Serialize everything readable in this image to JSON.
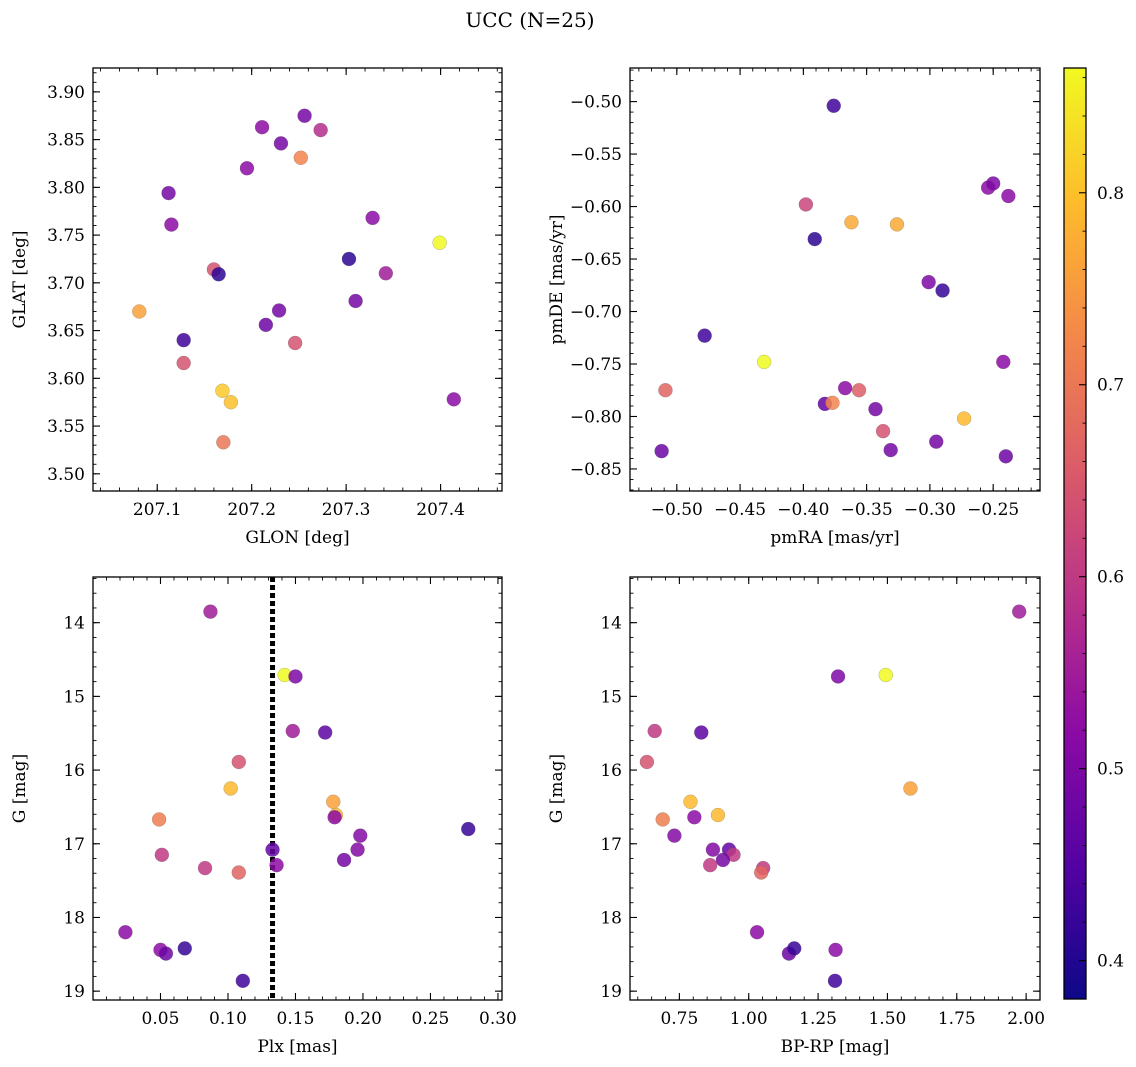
{
  "figure": {
    "title": "UCC (N=25)"
  },
  "colorbar": {
    "min": 0.38,
    "max": 0.865,
    "ticks": [
      0.4,
      0.5,
      0.6,
      0.7,
      0.8
    ],
    "tick_labels": [
      "0.4",
      "0.5",
      "0.6",
      "0.7",
      "0.8"
    ],
    "colormap": "plasma"
  },
  "chart_data": [
    {
      "type": "scatter",
      "id": "glon_glat",
      "xlabel": "GLON [deg]",
      "ylabel": "GLAT [deg]",
      "xlim": [
        207.032,
        207.465
      ],
      "ylim": [
        3.482,
        3.925
      ],
      "invert_y": false,
      "xticks": [
        207.1,
        207.2,
        207.3,
        207.4
      ],
      "xtick_labels": [
        "207.1",
        "207.2",
        "207.3",
        "207.4"
      ],
      "yticks": [
        3.5,
        3.55,
        3.6,
        3.65,
        3.7,
        3.75,
        3.8,
        3.85,
        3.9
      ],
      "ytick_labels": [
        "3.50",
        "3.55",
        "3.60",
        "3.65",
        "3.70",
        "3.75",
        "3.80",
        "3.85",
        "3.90"
      ],
      "x": [
        207.081,
        207.112,
        207.115,
        207.128,
        207.128,
        207.16,
        207.165,
        207.169,
        207.17,
        207.178,
        207.195,
        207.211,
        207.215,
        207.229,
        207.231,
        207.246,
        207.252,
        207.256,
        207.273,
        207.303,
        207.31,
        207.328,
        207.342,
        207.399,
        207.414
      ],
      "y": [
        3.67,
        3.794,
        3.761,
        3.64,
        3.616,
        3.714,
        3.709,
        3.587,
        3.533,
        3.575,
        3.82,
        3.863,
        3.656,
        3.671,
        3.846,
        3.637,
        3.831,
        3.875,
        3.86,
        3.725,
        3.681,
        3.768,
        3.71,
        3.742,
        3.578
      ],
      "color_value": [
        0.76,
        0.49,
        0.52,
        0.43,
        0.64,
        0.64,
        0.41,
        0.81,
        0.7,
        0.8,
        0.52,
        0.52,
        0.48,
        0.49,
        0.49,
        0.64,
        0.72,
        0.49,
        0.58,
        0.41,
        0.49,
        0.52,
        0.55,
        0.865,
        0.52
      ]
    },
    {
      "type": "scatter",
      "id": "pmra_pmde",
      "xlabel": "pmRA [mas/yr]",
      "ylabel": "pmDE [mas/yr]",
      "xlim": [
        -0.537,
        -0.213
      ],
      "ylim": [
        -0.871,
        -0.468
      ],
      "invert_y": false,
      "xticks": [
        -0.5,
        -0.45,
        -0.4,
        -0.35,
        -0.3,
        -0.25
      ],
      "xtick_labels": [
        "−0.50",
        "−0.45",
        "−0.40",
        "−0.35",
        "−0.30",
        "−0.25"
      ],
      "yticks": [
        -0.85,
        -0.8,
        -0.75,
        -0.7,
        -0.65,
        -0.6,
        -0.55,
        -0.5
      ],
      "ytick_labels": [
        "−0.85",
        "−0.80",
        "−0.75",
        "−0.70",
        "−0.65",
        "−0.60",
        "−0.55",
        "−0.50"
      ],
      "x": [
        -0.376,
        -0.398,
        -0.391,
        -0.362,
        -0.326,
        -0.254,
        -0.25,
        -0.238,
        -0.301,
        -0.29,
        -0.478,
        -0.431,
        -0.509,
        -0.512,
        -0.383,
        -0.377,
        -0.367,
        -0.356,
        -0.343,
        -0.337,
        -0.331,
        -0.295,
        -0.273,
        -0.242,
        -0.24
      ],
      "y": [
        -0.504,
        -0.598,
        -0.631,
        -0.615,
        -0.617,
        -0.582,
        -0.578,
        -0.59,
        -0.672,
        -0.68,
        -0.723,
        -0.748,
        -0.775,
        -0.833,
        -0.788,
        -0.787,
        -0.773,
        -0.775,
        -0.793,
        -0.814,
        -0.832,
        -0.824,
        -0.802,
        -0.748,
        -0.838
      ],
      "color_value": [
        0.43,
        0.62,
        0.41,
        0.77,
        0.77,
        0.52,
        0.5,
        0.52,
        0.5,
        0.42,
        0.43,
        0.865,
        0.67,
        0.48,
        0.47,
        0.72,
        0.52,
        0.66,
        0.49,
        0.64,
        0.49,
        0.49,
        0.79,
        0.52,
        0.48
      ]
    },
    {
      "type": "scatter",
      "id": "plx_g",
      "xlabel": "Plx [mas]",
      "ylabel": "G [mag]",
      "xlim": [
        0.0,
        0.303
      ],
      "ylim": [
        13.38,
        19.12
      ],
      "invert_y": true,
      "xticks": [
        0.05,
        0.1,
        0.15,
        0.2,
        0.25,
        0.3
      ],
      "xtick_labels": [
        "0.05",
        "0.10",
        "0.15",
        "0.20",
        "0.25",
        "0.30"
      ],
      "yticks": [
        14,
        15,
        16,
        17,
        18,
        19
      ],
      "ytick_labels": [
        "14",
        "15",
        "16",
        "17",
        "18",
        "19"
      ],
      "vline_x": 0.133,
      "x": [
        0.087,
        0.142,
        0.15,
        0.148,
        0.172,
        0.108,
        0.102,
        0.178,
        0.18,
        0.179,
        0.049,
        0.198,
        0.051,
        0.133,
        0.196,
        0.083,
        0.136,
        0.186,
        0.108,
        0.278,
        0.024,
        0.05,
        0.054,
        0.068,
        0.111
      ],
      "y": [
        13.85,
        14.71,
        14.73,
        15.47,
        15.49,
        15.89,
        16.25,
        16.43,
        16.61,
        16.64,
        16.67,
        16.89,
        17.15,
        17.08,
        17.08,
        17.33,
        17.29,
        17.22,
        17.39,
        16.8,
        18.2,
        18.44,
        18.49,
        18.42,
        18.86
      ],
      "color_value": [
        0.55,
        0.865,
        0.5,
        0.55,
        0.46,
        0.64,
        0.79,
        0.76,
        0.79,
        0.52,
        0.71,
        0.51,
        0.6,
        0.47,
        0.51,
        0.6,
        0.52,
        0.49,
        0.67,
        0.42,
        0.52,
        0.52,
        0.48,
        0.42,
        0.43
      ]
    },
    {
      "type": "scatter",
      "id": "bprp_g",
      "xlabel": "BP-RP [mag]",
      "ylabel": "G [mag]",
      "xlim": [
        0.572,
        2.05
      ],
      "ylim": [
        13.38,
        19.12
      ],
      "invert_y": true,
      "xticks": [
        0.75,
        1.0,
        1.25,
        1.5,
        1.75,
        2.0
      ],
      "xtick_labels": [
        "0.75",
        "1.00",
        "1.25",
        "1.50",
        "1.75",
        "2.00"
      ],
      "yticks": [
        14,
        15,
        16,
        17,
        18,
        19
      ],
      "ytick_labels": [
        "14",
        "15",
        "16",
        "17",
        "18",
        "19"
      ],
      "x": [
        1.975,
        1.322,
        1.494,
        0.661,
        0.829,
        0.633,
        1.583,
        0.79,
        0.889,
        0.69,
        0.804,
        0.732,
        0.871,
        0.929,
        0.945,
        0.907,
        0.861,
        1.052,
        1.045,
        1.03,
        1.313,
        1.145,
        1.164,
        1.311
      ],
      "y": [
        13.85,
        14.73,
        14.71,
        15.47,
        15.49,
        15.89,
        16.25,
        16.43,
        16.61,
        16.67,
        16.64,
        16.89,
        17.08,
        17.08,
        17.15,
        17.22,
        17.29,
        17.33,
        17.39,
        18.2,
        18.44,
        18.49,
        18.42,
        18.86
      ],
      "color_value": [
        0.55,
        0.5,
        0.865,
        0.6,
        0.46,
        0.64,
        0.76,
        0.79,
        0.79,
        0.71,
        0.52,
        0.51,
        0.51,
        0.47,
        0.6,
        0.49,
        0.6,
        0.6,
        0.67,
        0.52,
        0.52,
        0.48,
        0.42,
        0.43
      ]
    }
  ]
}
